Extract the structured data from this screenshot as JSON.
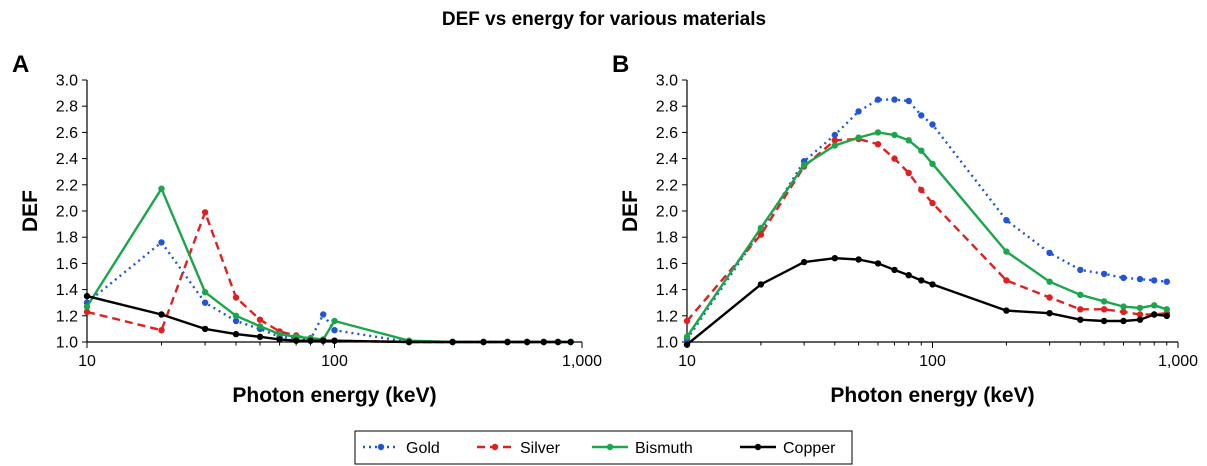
{
  "title": "DEF vs energy for various materials",
  "legend": [
    {
      "name": "Gold",
      "color": "#2255d4",
      "dash": "2,4"
    },
    {
      "name": "Silver",
      "color": "#e02020",
      "dash": "8,5"
    },
    {
      "name": "Bismuth",
      "color": "#1aa64b",
      "dash": ""
    },
    {
      "name": "Copper",
      "color": "#000000",
      "dash": ""
    }
  ],
  "chart_data": [
    {
      "type": "line",
      "panel": "A",
      "xlabel": "Photon energy (keV)",
      "ylabel": "DEF",
      "xscale": "log",
      "xlim": [
        10,
        1000
      ],
      "ylim": [
        1.0,
        3.0
      ],
      "xticks": [
        "10",
        "100",
        "1,000"
      ],
      "yticks": [
        "1.0",
        "1.2",
        "1.4",
        "1.6",
        "1.8",
        "2.0",
        "2.2",
        "2.4",
        "2.6",
        "2.8",
        "3.0"
      ],
      "series": [
        {
          "name": "Gold",
          "x": [
            10,
            20,
            30,
            40,
            50,
            60,
            70,
            80,
            90,
            100,
            200,
            300,
            400,
            500,
            600,
            700,
            800,
            900
          ],
          "y": [
            1.3,
            1.76,
            1.3,
            1.16,
            1.1,
            1.04,
            1.03,
            1.02,
            1.21,
            1.09,
            1.0,
            1.0,
            1.0,
            1.0,
            1.0,
            1.0,
            1.0,
            1.0
          ]
        },
        {
          "name": "Silver",
          "x": [
            10,
            20,
            30,
            40,
            50,
            60,
            70,
            80,
            90,
            100,
            200,
            300,
            400,
            500,
            600,
            700,
            800,
            900
          ],
          "y": [
            1.23,
            1.09,
            1.99,
            1.34,
            1.17,
            1.08,
            1.05,
            1.02,
            1.01,
            1.01,
            1.0,
            1.0,
            1.0,
            1.0,
            1.0,
            1.0,
            1.0,
            1.0
          ]
        },
        {
          "name": "Bismuth",
          "x": [
            10,
            20,
            30,
            40,
            50,
            60,
            70,
            80,
            90,
            100,
            200,
            300,
            400,
            500,
            600,
            700,
            800,
            900
          ],
          "y": [
            1.27,
            2.17,
            1.38,
            1.2,
            1.12,
            1.06,
            1.04,
            1.03,
            1.02,
            1.16,
            1.01,
            1.0,
            1.0,
            1.0,
            1.0,
            1.0,
            1.0,
            1.0
          ]
        },
        {
          "name": "Copper",
          "x": [
            10,
            20,
            30,
            40,
            50,
            60,
            70,
            80,
            90,
            100,
            200,
            300,
            400,
            500,
            600,
            700,
            800,
            900
          ],
          "y": [
            1.35,
            1.21,
            1.1,
            1.06,
            1.04,
            1.02,
            1.01,
            1.01,
            1.01,
            1.01,
            1.0,
            1.0,
            1.0,
            1.0,
            1.0,
            1.0,
            1.0,
            1.0
          ]
        }
      ]
    },
    {
      "type": "line",
      "panel": "B",
      "xlabel": "Photon energy (keV)",
      "ylabel": "DEF",
      "xscale": "log",
      "xlim": [
        10,
        1000
      ],
      "ylim": [
        1.0,
        3.0
      ],
      "xticks": [
        "10",
        "100",
        "1,000"
      ],
      "yticks": [
        "1.0",
        "1.2",
        "1.4",
        "1.6",
        "1.8",
        "2.0",
        "2.2",
        "2.4",
        "2.6",
        "2.8",
        "3.0"
      ],
      "series": [
        {
          "name": "Gold",
          "x": [
            10,
            20,
            30,
            40,
            50,
            60,
            70,
            80,
            90,
            100,
            200,
            300,
            400,
            500,
            600,
            700,
            800,
            900
          ],
          "y": [
            1.02,
            1.85,
            2.38,
            2.58,
            2.76,
            2.85,
            2.85,
            2.84,
            2.73,
            2.66,
            1.93,
            1.68,
            1.55,
            1.52,
            1.49,
            1.48,
            1.47,
            1.46
          ]
        },
        {
          "name": "Silver",
          "x": [
            10,
            20,
            30,
            40,
            50,
            60,
            70,
            80,
            90,
            100,
            200,
            300,
            400,
            500,
            600,
            700,
            800,
            900
          ],
          "y": [
            1.16,
            1.82,
            2.34,
            2.54,
            2.55,
            2.51,
            2.4,
            2.29,
            2.16,
            2.06,
            1.47,
            1.34,
            1.25,
            1.25,
            1.23,
            1.21,
            1.21,
            1.22
          ]
        },
        {
          "name": "Bismuth",
          "x": [
            10,
            20,
            30,
            40,
            50,
            60,
            70,
            80,
            90,
            100,
            200,
            300,
            400,
            500,
            600,
            700,
            800,
            900
          ],
          "y": [
            1.04,
            1.87,
            2.35,
            2.5,
            2.56,
            2.6,
            2.58,
            2.54,
            2.46,
            2.36,
            1.69,
            1.46,
            1.36,
            1.31,
            1.27,
            1.26,
            1.28,
            1.25
          ]
        },
        {
          "name": "Copper",
          "x": [
            10,
            20,
            30,
            40,
            50,
            60,
            70,
            80,
            90,
            100,
            200,
            300,
            400,
            500,
            600,
            700,
            800,
            900
          ],
          "y": [
            0.98,
            1.44,
            1.61,
            1.64,
            1.63,
            1.6,
            1.55,
            1.51,
            1.47,
            1.44,
            1.24,
            1.22,
            1.17,
            1.16,
            1.16,
            1.17,
            1.21,
            1.2
          ]
        }
      ]
    }
  ]
}
